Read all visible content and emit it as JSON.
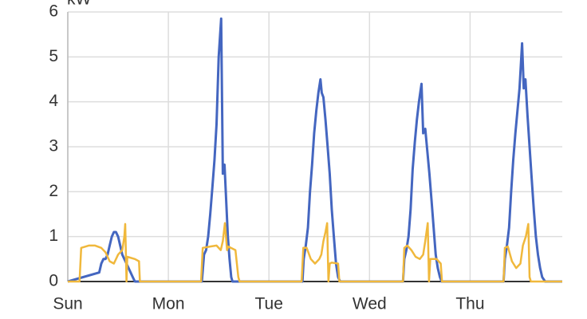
{
  "chart_data": {
    "type": "line",
    "y_label": "kW",
    "xlim": [
      0,
      118
    ],
    "ylim": [
      0,
      6
    ],
    "grid": true,
    "xticks": [
      {
        "value": 0,
        "label": "Sun"
      },
      {
        "value": 24,
        "label": "Mon"
      },
      {
        "value": 48,
        "label": "Tue"
      },
      {
        "value": 72,
        "label": "Wed"
      },
      {
        "value": 96,
        "label": "Thu"
      }
    ],
    "yticks": [
      0,
      1,
      2,
      3,
      4,
      5,
      6
    ],
    "series": [
      {
        "color": "#4466c0",
        "width": 3,
        "x": [
          0,
          7.5,
          8,
          8.5,
          9,
          9.5,
          10,
          10.5,
          11,
          11.5,
          12,
          12.5,
          13,
          13.5,
          14,
          14.5,
          15,
          15.5,
          16,
          32,
          32.5,
          33,
          33.5,
          34,
          34.5,
          35,
          35.5,
          36,
          36.6,
          37,
          37.4,
          37.8,
          38.2,
          38.6,
          39,
          39.3,
          56,
          56.3,
          56.8,
          57.3,
          57.8,
          58.3,
          58.8,
          59.3,
          59.8,
          60.3,
          60.6,
          61,
          61.5,
          62,
          62.5,
          63,
          63.5,
          64,
          64.5,
          65,
          80,
          80.3,
          80.8,
          81.3,
          81.8,
          82.3,
          82.8,
          83.3,
          83.8,
          84.4,
          84.8,
          85.3,
          85.8,
          86.3,
          86.8,
          87.3,
          87.8,
          88.3,
          88.8,
          89.2,
          104,
          104.3,
          104.8,
          105.3,
          105.8,
          106.3,
          106.8,
          107.3,
          107.8,
          108.4,
          108.8,
          109.2,
          109.7,
          110.2,
          110.7,
          111.2,
          111.7,
          112.2,
          112.7,
          113.2,
          113.9,
          118
        ],
        "values": [
          0,
          0.2,
          0.4,
          0.5,
          0.5,
          0.6,
          0.8,
          1.0,
          1.1,
          1.1,
          1.0,
          0.8,
          0.6,
          0.5,
          0.4,
          0.3,
          0.2,
          0.1,
          0,
          0,
          0.6,
          0.7,
          1.0,
          1.5,
          2.1,
          2.7,
          3.5,
          5.0,
          5.85,
          2.4,
          2.6,
          1.8,
          1.0,
          0.5,
          0.1,
          0,
          0,
          0.5,
          0.8,
          1.2,
          2.0,
          2.6,
          3.3,
          3.8,
          4.2,
          4.5,
          4.2,
          4.1,
          3.6,
          3.0,
          2.4,
          1.6,
          1.0,
          0.4,
          0.1,
          0,
          0,
          0.5,
          0.7,
          1.0,
          1.6,
          2.5,
          3.1,
          3.6,
          4.0,
          4.4,
          3.3,
          3.4,
          2.9,
          2.4,
          1.8,
          1.2,
          0.6,
          0.3,
          0.1,
          0,
          0,
          0.5,
          0.8,
          1.2,
          2.0,
          2.7,
          3.3,
          3.8,
          4.3,
          5.3,
          4.3,
          4.5,
          3.7,
          3.0,
          2.3,
          1.6,
          1.0,
          0.6,
          0.3,
          0.1,
          0,
          0
        ]
      },
      {
        "color": "#f0b83c",
        "width": 2.5,
        "x": [
          0,
          2.8,
          3.2,
          5,
          6.5,
          8,
          9,
          10,
          11,
          12,
          13,
          13.5,
          13.7,
          13.9,
          14,
          14.2,
          16,
          17,
          17.2,
          31.8,
          32.2,
          34,
          35.5,
          36.5,
          37,
          37.5,
          38,
          38.3,
          40,
          40.7,
          41,
          55.8,
          56.2,
          57,
          58,
          59,
          60,
          60.5,
          61,
          61.5,
          61.9,
          62.2,
          62.5,
          63,
          64.5,
          64.8,
          80,
          80.3,
          81,
          82,
          83,
          84,
          84.8,
          85.3,
          85.9,
          86.2,
          86.5,
          87,
          88,
          89,
          89.3,
          104,
          104.3,
          105,
          106,
          107,
          108,
          108.6,
          109.3,
          109.9,
          110.2,
          110.5,
          112.3,
          112.6,
          118
        ],
        "values": [
          0,
          0,
          0.75,
          0.8,
          0.8,
          0.75,
          0.65,
          0.45,
          0.4,
          0.6,
          0.7,
          1.0,
          1.28,
          0.5,
          0,
          0.55,
          0.5,
          0.45,
          0,
          0,
          0.75,
          0.78,
          0.8,
          0.7,
          0.9,
          1.3,
          0.7,
          0.78,
          0.7,
          0.1,
          0,
          0,
          0.75,
          0.75,
          0.5,
          0.4,
          0.5,
          0.6,
          0.9,
          1.1,
          1.3,
          0,
          0.4,
          0.42,
          0.4,
          0,
          0,
          0.75,
          0.8,
          0.7,
          0.55,
          0.5,
          0.6,
          0.9,
          1.3,
          0,
          0.5,
          0.5,
          0.5,
          0.4,
          0,
          0,
          0.75,
          0.78,
          0.45,
          0.3,
          0.4,
          0.8,
          1.0,
          1.28,
          0.1,
          0,
          0,
          0,
          0
        ]
      }
    ]
  }
}
